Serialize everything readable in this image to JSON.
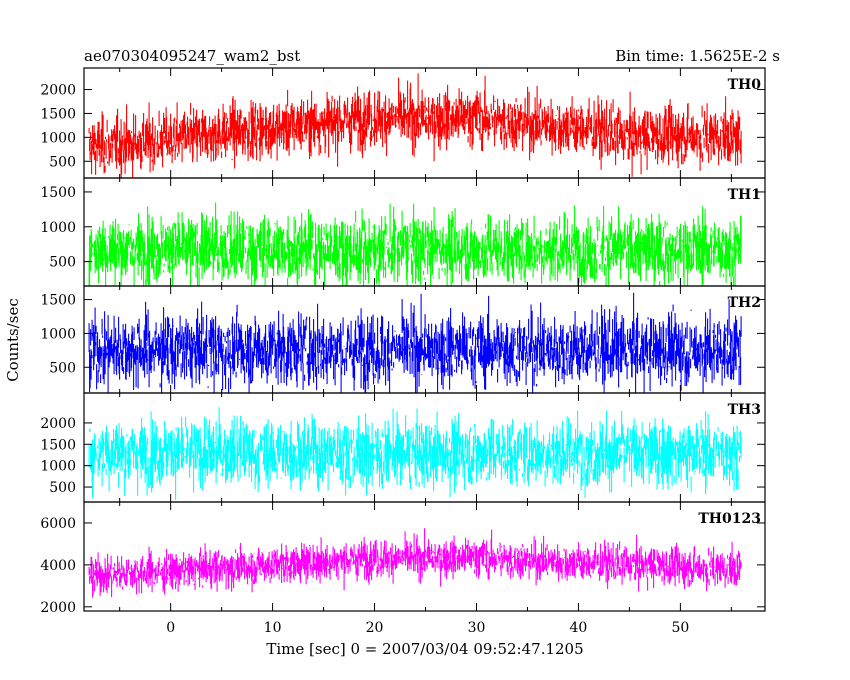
{
  "header": {
    "title": "ae070304095247_wam2_bst",
    "bin_time": "Bin time: 1.5625E-2 s"
  },
  "chart_data": {
    "type": "line",
    "xlabel": "Time [sec] 0 = 2007/03/04 09:52:47.1205",
    "ylabel": "Counts/sec",
    "xlim": [
      -8.5,
      58.3
    ],
    "x_data_range": [
      -8.0,
      56.0
    ],
    "xticks": [
      0,
      10,
      20,
      30,
      40,
      50
    ],
    "xtick_labels": [
      "0",
      "10",
      "20",
      "30",
      "40",
      "50"
    ],
    "panels": [
      {
        "name": "TH0",
        "color": "#ff0000",
        "ylim": [
          150,
          2450
        ],
        "yticks": [
          500,
          1000,
          1500,
          2000
        ],
        "ytick_labels": [
          "500",
          "1000",
          "1500",
          "2000"
        ],
        "trend_x": [
          -8,
          0,
          10,
          20,
          30,
          40,
          45,
          50,
          56
        ],
        "trend_mean": [
          800,
          950,
          1200,
          1400,
          1400,
          1200,
          1000,
          1050,
          1000
        ],
        "noise_sd": 330
      },
      {
        "name": "TH1",
        "color": "#00ff00",
        "ylim": [
          150,
          1700
        ],
        "yticks": [
          500,
          1000,
          1500
        ],
        "ytick_labels": [
          "500",
          "1000",
          "1500"
        ],
        "trend_x": [
          -8,
          56
        ],
        "trend_mean": [
          680,
          680
        ],
        "noise_sd": 270
      },
      {
        "name": "TH2",
        "color": "#0000ff",
        "ylim": [
          120,
          1700
        ],
        "yticks": [
          500,
          1000,
          1500
        ],
        "ytick_labels": [
          "500",
          "1000",
          "1500"
        ],
        "trend_x": [
          -8,
          56
        ],
        "trend_mean": [
          760,
          760
        ],
        "noise_sd": 290
      },
      {
        "name": "TH3",
        "color": "#00ffff",
        "ylim": [
          150,
          2700
        ],
        "yticks": [
          500,
          1000,
          1500,
          2000
        ],
        "ytick_labels": [
          "500",
          "1000",
          "1500",
          "2000"
        ],
        "trend_x": [
          -8,
          56
        ],
        "trend_mean": [
          1300,
          1300
        ],
        "noise_sd": 430
      },
      {
        "name": "TH0123",
        "color": "#ff00ff",
        "ylim": [
          1800,
          7000
        ],
        "yticks": [
          2000,
          4000,
          6000
        ],
        "ytick_labels": [
          "2000",
          "4000",
          "6000"
        ],
        "trend_x": [
          -8,
          0,
          10,
          20,
          30,
          40,
          50,
          56
        ],
        "trend_mean": [
          3500,
          3700,
          4000,
          4300,
          4350,
          4100,
          3900,
          3800
        ],
        "noise_sd": 500
      }
    ]
  }
}
